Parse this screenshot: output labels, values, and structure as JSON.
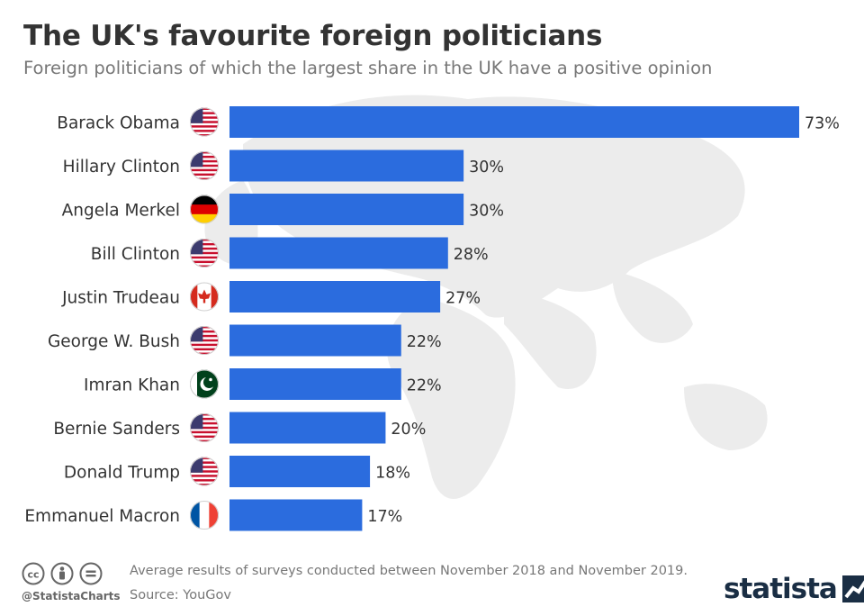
{
  "header": {
    "title": "The UK's favourite foreign politicians",
    "subtitle": "Foreign politicians of which the largest share in the UK have a positive opinion"
  },
  "footer": {
    "note": "Average results of surveys conducted between November 2018 and November 2019.",
    "source": "Source: YouGov",
    "handle": "@StatistaCharts",
    "brand": "statista",
    "license_icons": [
      "cc-icon",
      "by-icon",
      "nd-icon"
    ]
  },
  "colors": {
    "bar": "#2b6cde",
    "label": "#333333",
    "map": "#ececec"
  },
  "chart_data": {
    "type": "bar",
    "orientation": "horizontal",
    "title": "The UK's favourite foreign politicians",
    "subtitle": "Foreign politicians of which the largest share in the UK have a positive opinion",
    "categories": [
      "Barack Obama",
      "Hillary Clinton",
      "Angela Merkel",
      "Bill Clinton",
      "Justin Trudeau",
      "George W. Bush",
      "Imran Khan",
      "Bernie Sanders",
      "Donald Trump",
      "Emmanuel Macron"
    ],
    "values": [
      73,
      30,
      30,
      28,
      27,
      22,
      22,
      20,
      18,
      17
    ],
    "value_labels": [
      "73%",
      "30%",
      "30%",
      "28%",
      "27%",
      "22%",
      "22%",
      "20%",
      "18%",
      "17%"
    ],
    "flags": [
      "us",
      "us",
      "de",
      "us",
      "ca",
      "us",
      "pk",
      "us",
      "us",
      "fr"
    ],
    "unit": "%",
    "xlim": [
      0,
      73
    ],
    "grid": false,
    "legend": "none"
  }
}
